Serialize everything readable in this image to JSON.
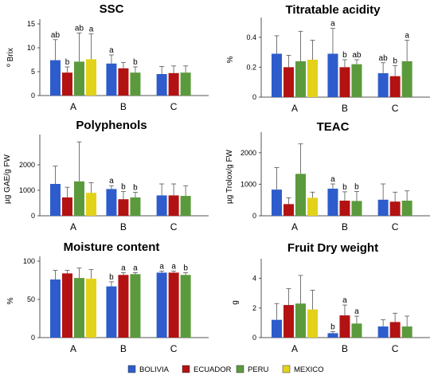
{
  "legend": [
    {
      "name": "BOLIVIA",
      "color": "#2e5ccc"
    },
    {
      "name": "ECUADOR",
      "color": "#b31212"
    },
    {
      "name": "PERU",
      "color": "#5b9a3c"
    },
    {
      "name": "MEXICO",
      "color": "#e3d21a"
    }
  ],
  "chart_data": [
    {
      "type": "bar",
      "title": "SSC",
      "xlabel": "",
      "ylabel": "º Brix",
      "categories": [
        "A",
        "B",
        "C"
      ],
      "ylim": [
        0,
        15
      ],
      "yticks": [
        "0",
        "5",
        "10",
        "15"
      ],
      "series": [
        {
          "name": "BOLIVIA",
          "values": [
            7.4,
            6.7,
            4.5
          ],
          "errors": [
            4.3,
            1.8,
            1.6
          ],
          "letters": [
            "ab",
            "a",
            ""
          ]
        },
        {
          "name": "ECUADOR",
          "values": [
            4.8,
            5.7,
            4.7
          ],
          "errors": [
            1.2,
            1.2,
            1.5
          ],
          "letters": [
            "b",
            "",
            ""
          ]
        },
        {
          "name": "PERU",
          "values": [
            7.1,
            4.8,
            4.8
          ],
          "errors": [
            6.0,
            1.2,
            1.4
          ],
          "letters": [
            "ab",
            "b",
            ""
          ]
        },
        {
          "name": "MEXICO",
          "values": [
            7.6,
            null,
            null
          ],
          "errors": [
            5.3,
            null,
            null
          ],
          "letters": [
            "a",
            "",
            ""
          ]
        }
      ]
    },
    {
      "type": "bar",
      "title": "Titratable acidity",
      "xlabel": "",
      "ylabel": "%",
      "categories": [
        "A",
        "B",
        "C"
      ],
      "ylim": [
        0,
        0.5
      ],
      "yticks": [
        "0",
        "0.2",
        "0.4"
      ],
      "series": [
        {
          "name": "BOLIVIA",
          "values": [
            0.29,
            0.29,
            0.16
          ],
          "errors": [
            0.12,
            0.17,
            0.07
          ],
          "letters": [
            "",
            "a",
            "ab"
          ]
        },
        {
          "name": "ECUADOR",
          "values": [
            0.2,
            0.2,
            0.14
          ],
          "errors": [
            0.08,
            0.05,
            0.07
          ],
          "letters": [
            "",
            "b",
            "b"
          ]
        },
        {
          "name": "PERU",
          "values": [
            0.24,
            0.22,
            0.24
          ],
          "errors": [
            0.2,
            0.03,
            0.14
          ],
          "letters": [
            "",
            "ab",
            "a"
          ]
        },
        {
          "name": "MEXICO",
          "values": [
            0.25,
            null,
            null
          ],
          "errors": [
            0.13,
            null,
            null
          ],
          "letters": [
            "",
            "",
            ""
          ]
        }
      ]
    },
    {
      "type": "bar",
      "title": "Polyphenols",
      "xlabel": "",
      "ylabel": "µg GAE/g FW",
      "categories": [
        "A",
        "B",
        "C"
      ],
      "ylim": [
        0,
        3000
      ],
      "yticks": [
        "0",
        "1000",
        "2000"
      ],
      "series": [
        {
          "name": "BOLIVIA",
          "values": [
            1250,
            1050,
            800
          ],
          "errors": [
            700,
            130,
            450
          ],
          "letters": [
            "",
            "a",
            ""
          ]
        },
        {
          "name": "ECUADOR",
          "values": [
            720,
            650,
            800
          ],
          "errors": [
            400,
            300,
            450
          ],
          "letters": [
            "",
            "b",
            ""
          ]
        },
        {
          "name": "PERU",
          "values": [
            1350,
            720,
            780
          ],
          "errors": [
            1550,
            200,
            400
          ],
          "letters": [
            "",
            "b",
            ""
          ]
        },
        {
          "name": "MEXICO",
          "values": [
            900,
            null,
            null
          ],
          "errors": [
            400,
            null,
            null
          ],
          "letters": [
            "",
            "",
            ""
          ]
        }
      ]
    },
    {
      "type": "bar",
      "title": "TEAC",
      "xlabel": "",
      "ylabel": "µg Trolox/g FW",
      "categories": [
        "A",
        "B",
        "C"
      ],
      "ylim": [
        0,
        2500
      ],
      "yticks": [
        "0",
        "1000",
        "2000"
      ],
      "series": [
        {
          "name": "BOLIVIA",
          "values": [
            830,
            860,
            510
          ],
          "errors": [
            700,
            150,
            500
          ],
          "letters": [
            "",
            "a",
            ""
          ]
        },
        {
          "name": "ECUADOR",
          "values": [
            370,
            480,
            450
          ],
          "errors": [
            200,
            280,
            300
          ],
          "letters": [
            "",
            "b",
            ""
          ]
        },
        {
          "name": "PERU",
          "values": [
            1330,
            470,
            480
          ],
          "errors": [
            950,
            300,
            310
          ],
          "letters": [
            "",
            "b",
            ""
          ]
        },
        {
          "name": "MEXICO",
          "values": [
            570,
            null,
            null
          ],
          "errors": [
            180,
            null,
            null
          ],
          "letters": [
            "",
            "",
            ""
          ]
        }
      ]
    },
    {
      "type": "bar",
      "title": "Moisture content",
      "xlabel": "",
      "ylabel": "%",
      "categories": [
        "A",
        "B",
        "C"
      ],
      "ylim": [
        0,
        100
      ],
      "yticks": [
        "0",
        "50",
        "100"
      ],
      "series": [
        {
          "name": "BOLIVIA",
          "values": [
            76,
            67,
            85
          ],
          "errors": [
            12,
            6,
            2
          ],
          "letters": [
            "",
            "b",
            "a"
          ]
        },
        {
          "name": "ECUADOR",
          "values": [
            84,
            82,
            85
          ],
          "errors": [
            4,
            3,
            2
          ],
          "letters": [
            "",
            "a",
            "a"
          ]
        },
        {
          "name": "PERU",
          "values": [
            78,
            83,
            82
          ],
          "errors": [
            13,
            2,
            3
          ],
          "letters": [
            "",
            "a",
            "b"
          ]
        },
        {
          "name": "MEXICO",
          "values": [
            77,
            null,
            null
          ],
          "errors": [
            12,
            null,
            null
          ],
          "letters": [
            "",
            "",
            ""
          ]
        }
      ]
    },
    {
      "type": "bar",
      "title": "Fruit Dry weight",
      "xlabel": "",
      "ylabel": "g",
      "categories": [
        "A",
        "B",
        "C"
      ],
      "ylim": [
        0,
        5
      ],
      "yticks": [
        "0",
        "2",
        "4"
      ],
      "series": [
        {
          "name": "BOLIVIA",
          "values": [
            1.2,
            0.3,
            0.75
          ],
          "errors": [
            1.1,
            0.1,
            0.45
          ],
          "letters": [
            "",
            "b",
            ""
          ]
        },
        {
          "name": "ECUADOR",
          "values": [
            2.2,
            1.5,
            1.05
          ],
          "errors": [
            1.1,
            0.7,
            0.6
          ],
          "letters": [
            "",
            "a",
            ""
          ]
        },
        {
          "name": "PERU",
          "values": [
            2.3,
            0.95,
            0.75
          ],
          "errors": [
            1.9,
            0.5,
            0.7
          ],
          "letters": [
            "",
            "a",
            ""
          ]
        },
        {
          "name": "MEXICO",
          "values": [
            1.9,
            null,
            null
          ],
          "errors": [
            1.3,
            null,
            null
          ],
          "letters": [
            "",
            "",
            ""
          ]
        }
      ]
    }
  ]
}
